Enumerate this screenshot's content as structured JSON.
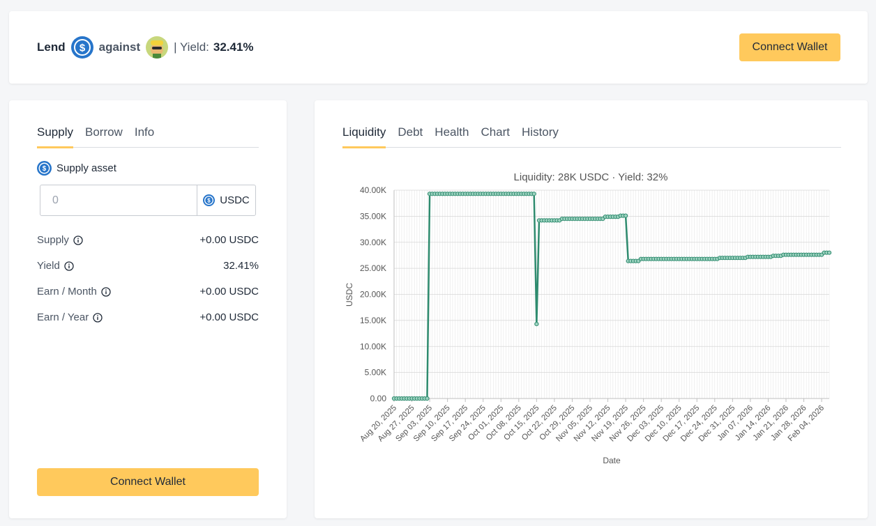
{
  "header": {
    "lend_label": "Lend",
    "against_label": "against",
    "yield_label": "| Yield:",
    "yield_value": "32.41%",
    "connect_wallet_label": "Connect Wallet"
  },
  "left_panel": {
    "tabs": [
      {
        "label": "Supply",
        "active": true
      },
      {
        "label": "Borrow",
        "active": false
      },
      {
        "label": "Info",
        "active": false
      }
    ],
    "supply_asset_label": "Supply asset",
    "amount_placeholder": "0",
    "unit_label": "USDC",
    "stats": [
      {
        "label": "Supply",
        "value": "+0.00 USDC"
      },
      {
        "label": "Yield",
        "value": "32.41%"
      },
      {
        "label": "Earn / Month",
        "value": "+0.00 USDC"
      },
      {
        "label": "Earn / Year",
        "value": "+0.00 USDC"
      }
    ],
    "connect_wallet_label": "Connect Wallet"
  },
  "right_panel": {
    "tabs": [
      {
        "label": "Liquidity",
        "active": true
      },
      {
        "label": "Debt",
        "active": false
      },
      {
        "label": "Health",
        "active": false
      },
      {
        "label": "Chart",
        "active": false
      },
      {
        "label": "History",
        "active": false
      }
    ]
  },
  "colors": {
    "accent": "#ffc95c",
    "usdc_blue": "#2775ca",
    "line": "#2e8b6e"
  },
  "chart_data": {
    "type": "line",
    "title": "Liquidity: 28K USDC · Yield: 32%",
    "xlabel": "Date",
    "ylabel": "USDC",
    "ylim": [
      0,
      40000
    ],
    "yticks": [
      "0.00",
      "5.00K",
      "10.00K",
      "15.00K",
      "20.00K",
      "25.00K",
      "30.00K",
      "35.00K",
      "40.00K"
    ],
    "xticks": [
      "Aug 20, 2025",
      "Aug 27, 2025",
      "Sep 03, 2025",
      "Sep 10, 2025",
      "Sep 17, 2025",
      "Sep 24, 2025",
      "Oct 01, 2025",
      "Oct 08, 2025",
      "Oct 15, 2025",
      "Oct 22, 2025",
      "Oct 29, 2025",
      "Nov 05, 2025",
      "Nov 12, 2025",
      "Nov 19, 2025",
      "Nov 26, 2025",
      "Dec 03, 2025",
      "Dec 10, 2025",
      "Dec 17, 2025",
      "Dec 24, 2025",
      "Dec 31, 2025",
      "Jan 07, 2026",
      "Jan 14, 2026",
      "Jan 21, 2026",
      "Jan 28, 2026",
      "Feb 04, 2026"
    ],
    "grid": true,
    "series": [
      {
        "segments": [
          {
            "from": "2025-08-20",
            "to": "2025-09-02",
            "value": 0
          },
          {
            "from": "2025-09-03",
            "to": "2025-10-14",
            "value": 39300
          },
          {
            "from": "2025-10-15",
            "to": "2025-10-15",
            "value": 14300
          },
          {
            "from": "2025-10-16",
            "to": "2025-10-24",
            "value": 34200
          },
          {
            "from": "2025-10-25",
            "to": "2025-11-10",
            "value": 34500
          },
          {
            "from": "2025-11-11",
            "to": "2025-11-16",
            "value": 34900
          },
          {
            "from": "2025-11-17",
            "to": "2025-11-19",
            "value": 35100
          },
          {
            "from": "2025-11-20",
            "to": "2025-11-24",
            "value": 26400
          },
          {
            "from": "2025-11-25",
            "to": "2025-12-25",
            "value": 26800
          },
          {
            "from": "2025-12-26",
            "to": "2026-01-05",
            "value": 27000
          },
          {
            "from": "2026-01-06",
            "to": "2026-01-15",
            "value": 27200
          },
          {
            "from": "2026-01-16",
            "to": "2026-01-19",
            "value": 27400
          },
          {
            "from": "2026-01-20",
            "to": "2026-02-04",
            "value": 27600
          },
          {
            "from": "2026-02-05",
            "to": "2026-02-07",
            "value": 28000
          }
        ]
      }
    ]
  }
}
